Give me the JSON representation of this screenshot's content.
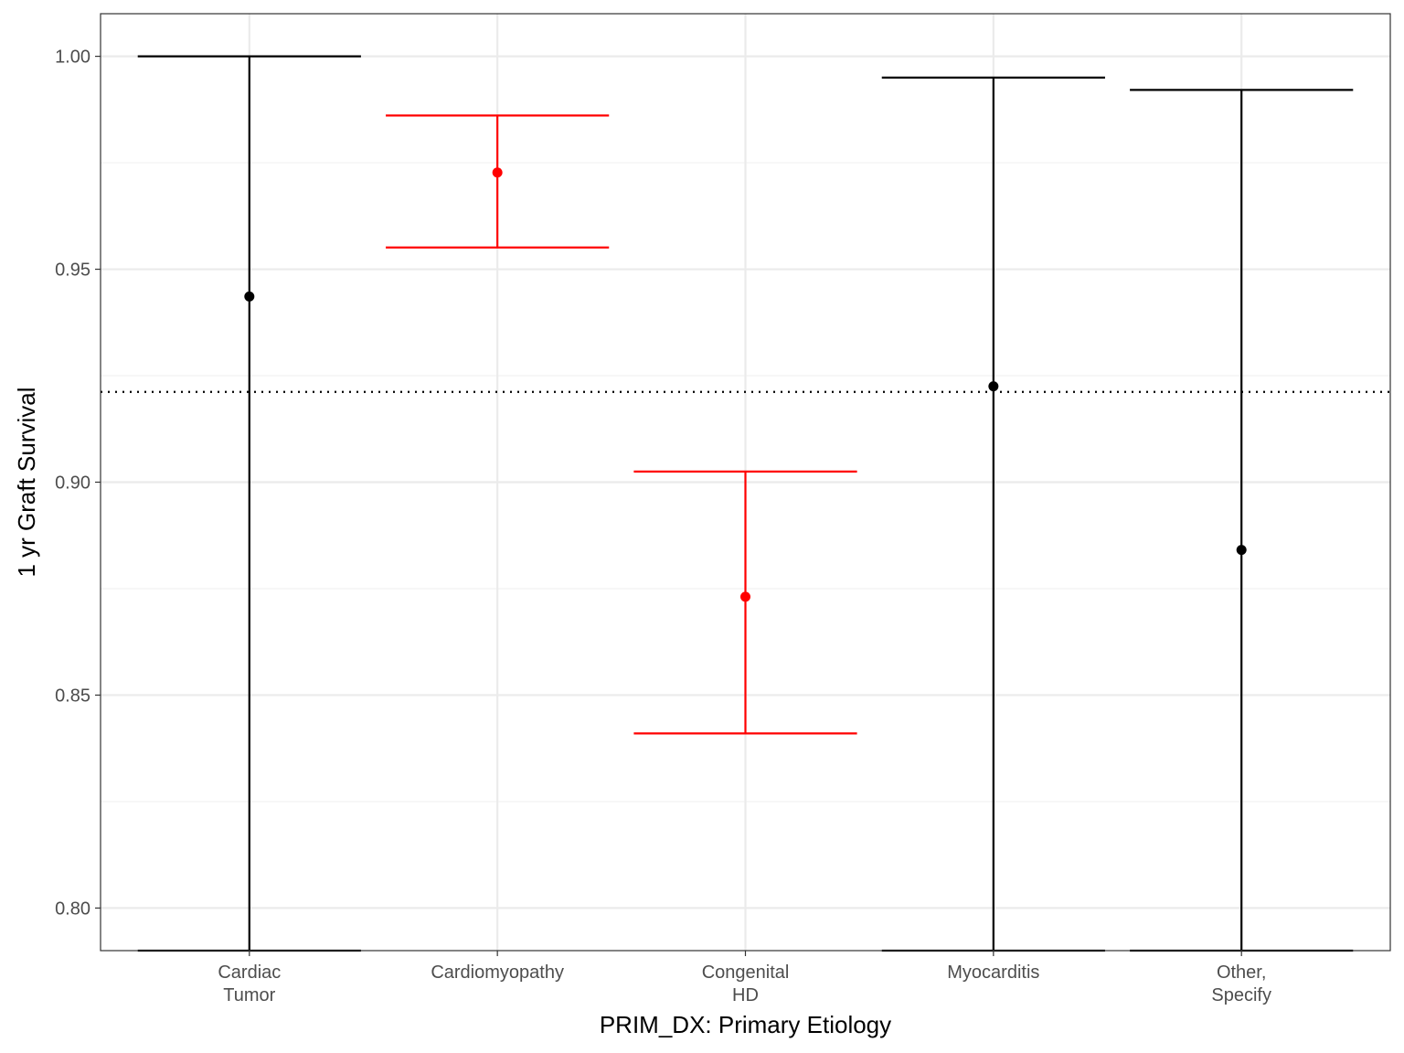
{
  "chart_data": {
    "type": "errorbar",
    "xlabel": "PRIM_DX: Primary Etiology",
    "ylabel": "1 yr Graft Survival",
    "categories": [
      "Cardiac\nTumor",
      "Cardiomyopathy",
      "Congenital\nHD",
      "Myocarditis",
      "Other,\nSpecify"
    ],
    "estimate": [
      0.9436,
      0.9727,
      0.8731,
      0.9225,
      0.8841
    ],
    "lower": [
      0.79,
      0.9551,
      0.841,
      0.79,
      0.79
    ],
    "upper": [
      1.0,
      0.9861,
      0.9025,
      0.995,
      0.9921
    ],
    "highlight": [
      false,
      true,
      true,
      false,
      false
    ],
    "colors": {
      "normal": "#000000",
      "highlight": "#ff0000"
    },
    "reference_line": {
      "y": 0.9212,
      "style": "dotted"
    },
    "ylim": [
      0.79,
      1.01
    ],
    "yticks": [
      "0.80",
      "0.85",
      "0.90",
      "0.95",
      "1.00"
    ],
    "ytick_values": [
      0.8,
      0.85,
      0.9,
      0.95,
      1.0
    ],
    "y_minor_values": [
      0.825,
      0.875,
      0.925,
      0.975
    ],
    "grid": true,
    "theme": "bw"
  }
}
